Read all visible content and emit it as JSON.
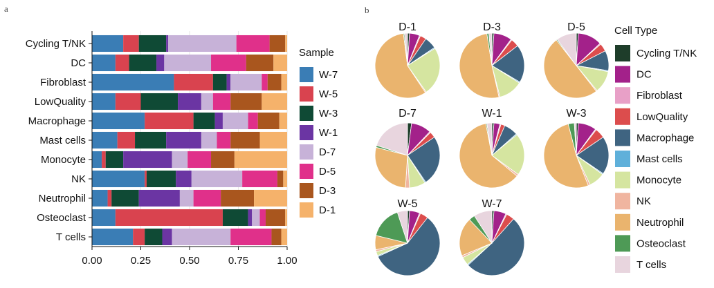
{
  "panel_a_label": "a",
  "panel_b_label": "b",
  "chart_data": [
    {
      "type": "bar",
      "orientation": "horizontal",
      "stacked": true,
      "title": "",
      "xlabel": "",
      "ylabel": "",
      "xlim": [
        0,
        1
      ],
      "xticks": [
        "0.00",
        "0.25",
        "0.50",
        "0.75",
        "1.00"
      ],
      "categories": [
        "Cycling T/NK",
        "DC",
        "Fibroblast",
        "LowQuality",
        "Macrophage",
        "Mast cells",
        "Monocyte",
        "NK",
        "Neutrophil",
        "Osteoclast",
        "T cells"
      ],
      "legend_title": "Sample",
      "series": [
        {
          "name": "W-7",
          "color": "#3A7DB5",
          "values": [
            0.16,
            0.12,
            0.42,
            0.12,
            0.27,
            0.13,
            0.05,
            0.27,
            0.08,
            0.12,
            0.21
          ]
        },
        {
          "name": "W-5",
          "color": "#D9434F",
          "values": [
            0.08,
            0.07,
            0.2,
            0.13,
            0.25,
            0.09,
            0.02,
            0.01,
            0.02,
            0.55,
            0.06
          ]
        },
        {
          "name": "W-3",
          "color": "#0F4A35",
          "values": [
            0.14,
            0.14,
            0.07,
            0.19,
            0.11,
            0.16,
            0.09,
            0.15,
            0.14,
            0.13,
            0.09
          ]
        },
        {
          "name": "W-1",
          "color": "#6B35A3",
          "values": [
            0.01,
            0.04,
            0.02,
            0.12,
            0.04,
            0.18,
            0.25,
            0.08,
            0.21,
            0.02,
            0.05
          ]
        },
        {
          "name": "D-7",
          "color": "#C7B2D8",
          "values": [
            0.35,
            0.24,
            0.16,
            0.06,
            0.13,
            0.08,
            0.08,
            0.26,
            0.07,
            0.04,
            0.3
          ]
        },
        {
          "name": "D-5",
          "color": "#E0308A",
          "values": [
            0.17,
            0.18,
            0.03,
            0.09,
            0.05,
            0.07,
            0.12,
            0.18,
            0.14,
            0.03,
            0.21
          ]
        },
        {
          "name": "D-3",
          "color": "#A9561E",
          "values": [
            0.08,
            0.14,
            0.07,
            0.16,
            0.11,
            0.15,
            0.12,
            0.03,
            0.17,
            0.1,
            0.05
          ]
        },
        {
          "name": "D-1",
          "color": "#F5B26B",
          "values": [
            0.01,
            0.07,
            0.03,
            0.13,
            0.04,
            0.14,
            0.27,
            0.02,
            0.17,
            0.01,
            0.03
          ]
        }
      ]
    },
    {
      "type": "pie",
      "legend_title": "Cell Type",
      "cell_types": [
        {
          "name": "Cycling T/NK",
          "color": "#1E3D2A"
        },
        {
          "name": "DC",
          "color": "#A3218A"
        },
        {
          "name": "Fibroblast",
          "color": "#E8A0C7"
        },
        {
          "name": "LowQuality",
          "color": "#DC4D4D"
        },
        {
          "name": "Macrophage",
          "color": "#3F6481"
        },
        {
          "name": "Mast cells",
          "color": "#5FB0DA"
        },
        {
          "name": "Monocyte",
          "color": "#D5E5A0"
        },
        {
          "name": "NK",
          "color": "#F0B5A0"
        },
        {
          "name": "Neutrophil",
          "color": "#EAB46E"
        },
        {
          "name": "Osteoclast",
          "color": "#4E9A56"
        },
        {
          "name": "T cells",
          "color": "#E8D5DE"
        }
      ],
      "pies": [
        {
          "title": "D-1",
          "values": [
            0.01,
            0.05,
            0.005,
            0.03,
            0.06,
            0.005,
            0.24,
            0.005,
            0.57,
            0.005,
            0.015
          ]
        },
        {
          "title": "D-3",
          "values": [
            0.01,
            0.09,
            0.005,
            0.04,
            0.19,
            0.005,
            0.12,
            0.005,
            0.51,
            0.01,
            0.015
          ]
        },
        {
          "title": "D-5",
          "values": [
            0.01,
            0.12,
            0.005,
            0.04,
            0.1,
            0.005,
            0.11,
            0.005,
            0.5,
            0.005,
            0.1
          ]
        },
        {
          "title": "D-7",
          "values": [
            0.02,
            0.1,
            0.005,
            0.03,
            0.25,
            0.005,
            0.08,
            0.02,
            0.28,
            0.01,
            0.2
          ]
        },
        {
          "title": "W-1",
          "values": [
            0.01,
            0.03,
            0.005,
            0.02,
            0.07,
            0.005,
            0.21,
            0.01,
            0.61,
            0.005,
            0.025
          ]
        },
        {
          "title": "W-3",
          "values": [
            0.01,
            0.09,
            0.005,
            0.05,
            0.19,
            0.005,
            0.08,
            0.01,
            0.52,
            0.03,
            0.01
          ]
        },
        {
          "title": "W-5",
          "values": [
            0.01,
            0.05,
            0.005,
            0.04,
            0.57,
            0.005,
            0.02,
            0.01,
            0.07,
            0.16,
            0.05
          ]
        },
        {
          "title": "W-7",
          "values": [
            0.01,
            0.06,
            0.005,
            0.04,
            0.51,
            0.005,
            0.04,
            0.01,
            0.19,
            0.03,
            0.09
          ]
        }
      ]
    }
  ]
}
